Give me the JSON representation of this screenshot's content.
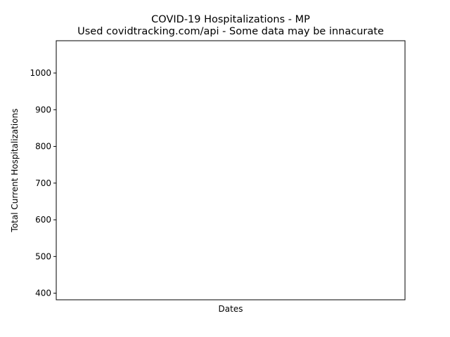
{
  "chart_data": {
    "type": "line",
    "title": "COVID-19 Hospitalizations - MP",
    "subtitle": "Used covidtracking.com/api - Some data may be innacurate",
    "xlabel": "Dates",
    "ylabel": "Total Current Hospitalizations",
    "ylim": [
      382,
      1088
    ],
    "yticks": [
      400,
      500,
      600,
      700,
      800,
      900,
      1000
    ],
    "x": [],
    "series": [
      {
        "values": []
      }
    ],
    "grid": false,
    "legend": "none"
  },
  "colors": {
    "background": "#ffffff",
    "axes": "#000000",
    "text": "#000000"
  }
}
